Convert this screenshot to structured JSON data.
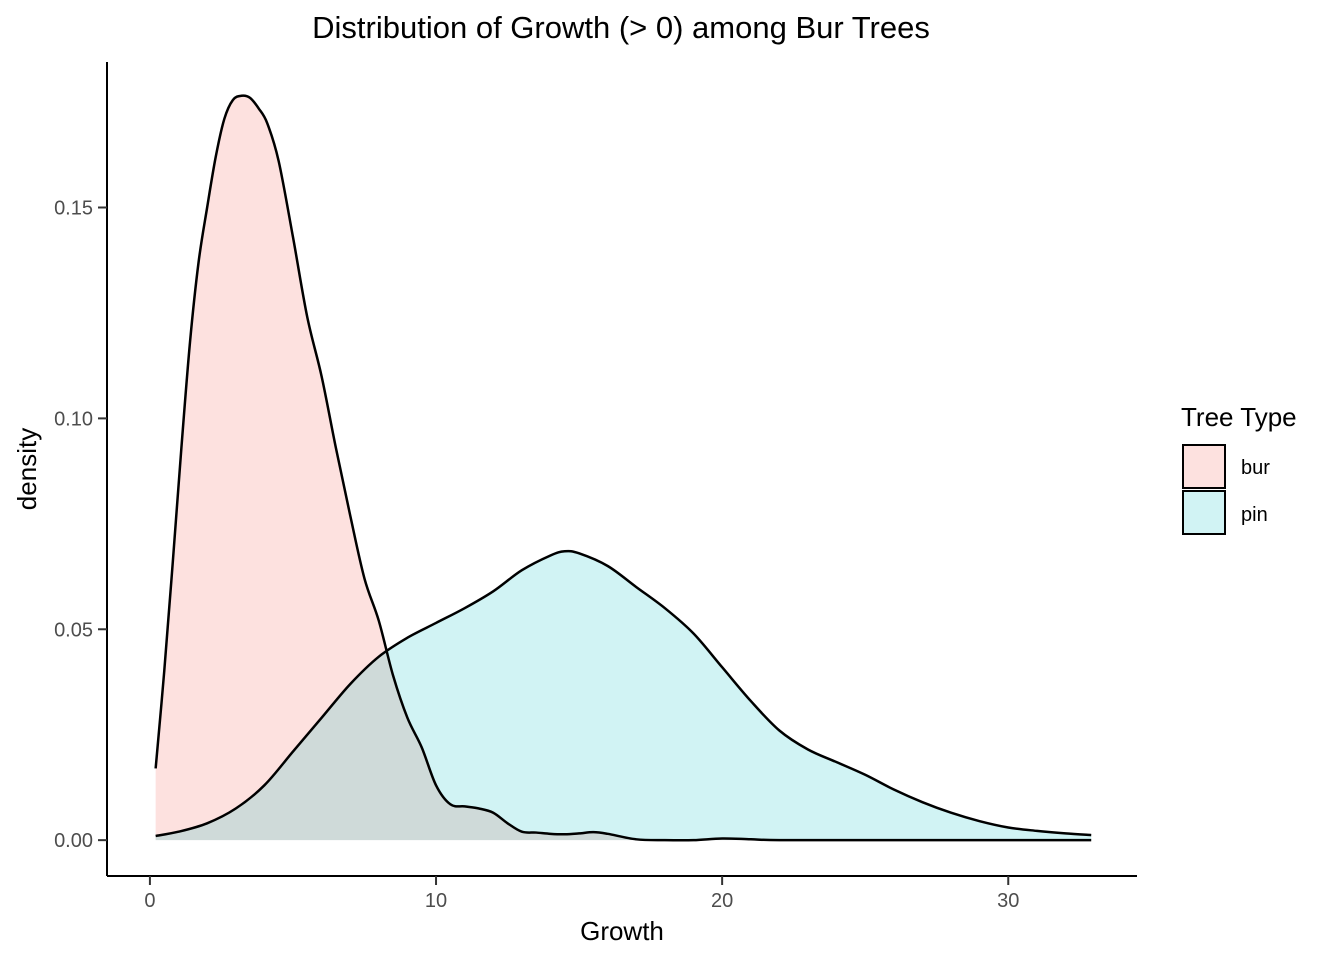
{
  "chart_data": {
    "type": "area",
    "subtype": "density",
    "title": "Distribution of Growth (> 0) among Bur Trees",
    "xlabel": "Growth",
    "ylabel": "density",
    "xlim": [
      -1.5,
      34.5
    ],
    "ylim": [
      -0.0085,
      0.1845
    ],
    "x_ticks": [
      0,
      10,
      20,
      30
    ],
    "y_ticks": [
      0.0,
      0.05,
      0.1,
      0.15
    ],
    "x_tick_labels": [
      "0",
      "10",
      "20",
      "30"
    ],
    "y_tick_labels": [
      "0.00",
      "0.05",
      "0.10",
      "0.15"
    ],
    "grid": false,
    "legend": {
      "title": "Tree Type",
      "position": "right",
      "entries": [
        "bur",
        "pin"
      ]
    },
    "series": [
      {
        "name": "bur",
        "fill": "#F8766D",
        "fill_opacity": 0.22,
        "stroke": "#000000",
        "x": [
          0.2,
          0.5,
          0.8,
          1.1,
          1.4,
          1.7,
          2.0,
          2.3,
          2.6,
          2.9,
          3.2,
          3.5,
          3.8,
          4.1,
          4.5,
          5.0,
          5.5,
          6.0,
          6.5,
          7.0,
          7.5,
          8.0,
          8.5,
          9.0,
          9.5,
          10.0,
          10.5,
          11.0,
          11.5,
          12.0,
          12.5,
          13.0,
          13.5,
          14.0,
          14.5,
          15.0,
          15.5,
          16.0,
          17.0,
          18.0,
          19.0,
          20.0,
          21.0,
          22.0,
          25.0,
          28.0,
          30.0,
          32.9
        ],
        "y": [
          0.017,
          0.04,
          0.066,
          0.093,
          0.118,
          0.137,
          0.15,
          0.162,
          0.171,
          0.1755,
          0.1765,
          0.176,
          0.1735,
          0.17,
          0.161,
          0.143,
          0.124,
          0.11,
          0.093,
          0.077,
          0.062,
          0.052,
          0.039,
          0.029,
          0.022,
          0.013,
          0.0085,
          0.008,
          0.0075,
          0.0065,
          0.004,
          0.002,
          0.0018,
          0.0015,
          0.0014,
          0.0016,
          0.0019,
          0.0015,
          0.0002,
          0.0,
          0.0,
          0.0004,
          0.0002,
          0.0,
          0.0,
          0.0,
          0.0,
          0.0
        ]
      },
      {
        "name": "pin",
        "fill": "#00BFC4",
        "fill_opacity": 0.18,
        "stroke": "#000000",
        "x": [
          0.2,
          1.0,
          2.0,
          3.0,
          4.0,
          5.0,
          6.0,
          7.0,
          8.0,
          9.0,
          10.0,
          11.0,
          12.0,
          13.0,
          14.0,
          14.5,
          15.0,
          16.0,
          17.0,
          18.0,
          19.0,
          20.0,
          21.0,
          22.0,
          23.0,
          24.0,
          25.0,
          26.0,
          27.0,
          28.0,
          29.0,
          30.0,
          31.0,
          32.0,
          32.9
        ],
        "y": [
          0.001,
          0.002,
          0.004,
          0.0075,
          0.013,
          0.021,
          0.029,
          0.037,
          0.0435,
          0.048,
          0.0515,
          0.055,
          0.059,
          0.064,
          0.0675,
          0.0685,
          0.068,
          0.065,
          0.06,
          0.055,
          0.049,
          0.041,
          0.033,
          0.026,
          0.0215,
          0.0185,
          0.0155,
          0.012,
          0.009,
          0.0065,
          0.0045,
          0.003,
          0.0022,
          0.0016,
          0.0012
        ]
      }
    ]
  }
}
